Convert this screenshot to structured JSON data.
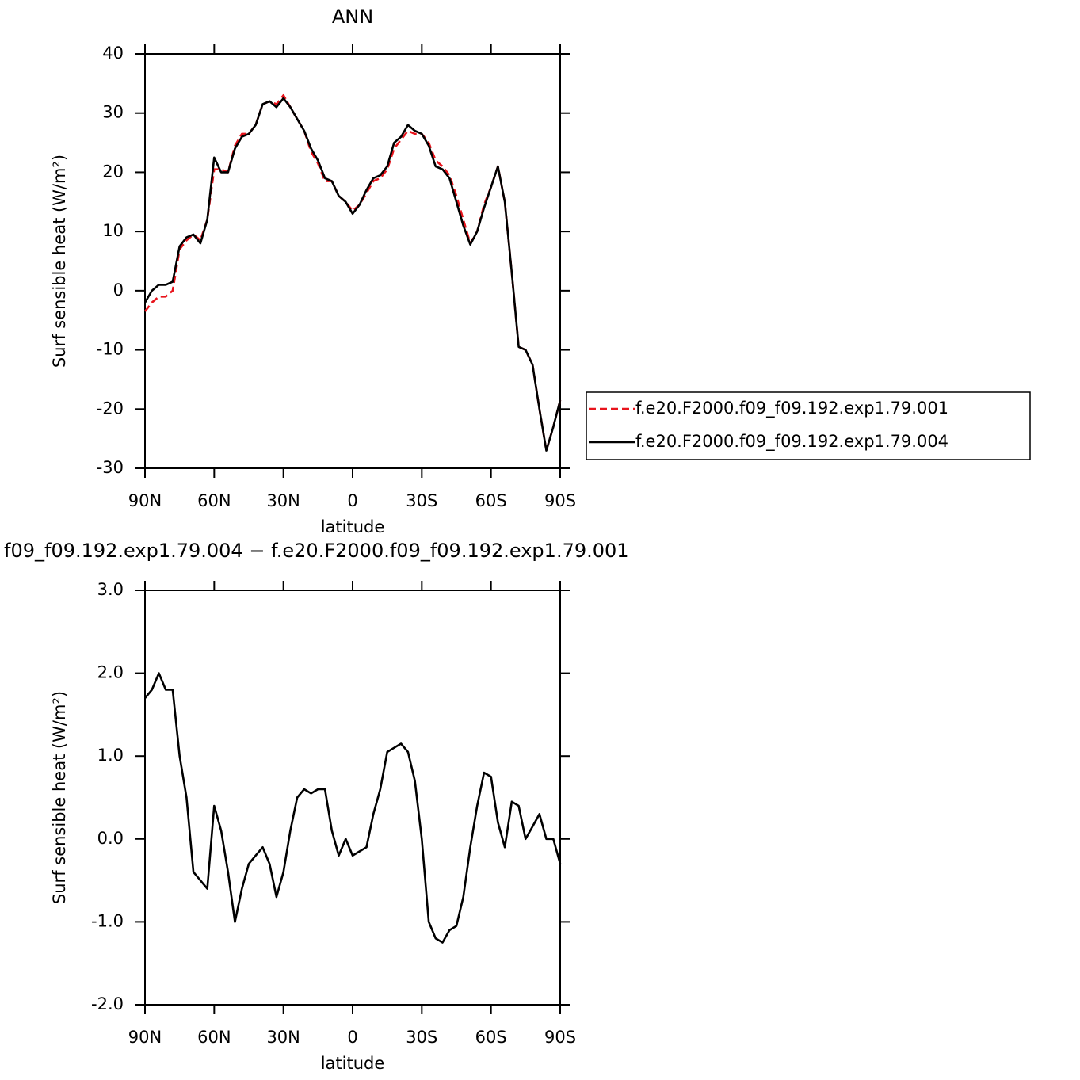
{
  "chart_data": [
    {
      "type": "line",
      "title": "ANN",
      "x_label": "latitude",
      "y_label": "Surf sensible heat (W/m²)",
      "x": [
        90,
        87,
        84,
        81,
        78,
        75,
        72,
        69,
        66,
        63,
        60,
        57,
        54,
        51,
        48,
        45,
        42,
        39,
        36,
        33,
        30,
        27,
        24,
        21,
        18,
        15,
        12,
        9,
        6,
        3,
        0,
        -3,
        -6,
        -9,
        -12,
        -15,
        -18,
        -21,
        -24,
        -27,
        -30,
        -33,
        -36,
        -39,
        -42,
        -45,
        -48,
        -51,
        -54,
        -57,
        -60,
        -63,
        -66,
        -69,
        -72,
        -75,
        -78,
        -81,
        -84,
        -87,
        -90
      ],
      "xlim": [
        90,
        -90
      ],
      "xticks": [
        {
          "value": 90,
          "label": "90N"
        },
        {
          "value": 60,
          "label": "60N"
        },
        {
          "value": 30,
          "label": "30N"
        },
        0,
        {
          "value": -30,
          "label": "30S"
        },
        {
          "value": -60,
          "label": "60S"
        },
        {
          "value": -90,
          "label": "90S"
        }
      ],
      "ylim": [
        -30,
        40
      ],
      "yticks": [
        -30,
        -20,
        -10,
        0,
        10,
        20,
        30,
        40
      ],
      "legend": "right",
      "series": [
        {
          "name": "f.e20.F2000.f09_f09.192.exp1.79.001",
          "color": "#e8141c",
          "dashed": true,
          "values": [
            -3.5,
            -2,
            -1,
            -1,
            0,
            7,
            8.5,
            9.5,
            8.5,
            12,
            20.5,
            20.5,
            20,
            24.5,
            26.5,
            26.5,
            28,
            31.5,
            32,
            31.5,
            33,
            31,
            29,
            27,
            23.5,
            21.5,
            18.5,
            18.5,
            16,
            15,
            13.5,
            14.5,
            16.5,
            18.5,
            19,
            20.5,
            24,
            25.5,
            27,
            26.5,
            26.5,
            25,
            22,
            21,
            19.5,
            16,
            12,
            8,
            10,
            14.5,
            17.5,
            21,
            15,
            3,
            -9.5,
            -10,
            -12.5,
            -20,
            -27,
            -23,
            -18.5
          ]
        },
        {
          "name": "f.e20.F2000.f09_f09.192.exp1.79.004",
          "color": "#000000",
          "dashed": false,
          "values": [
            -2,
            0,
            1,
            1,
            1.5,
            7.5,
            9,
            9.5,
            8,
            12,
            22.5,
            20,
            20,
            24,
            26,
            26.5,
            28,
            31.5,
            32,
            31,
            32.5,
            31,
            29,
            27,
            24,
            22,
            19,
            18.5,
            16,
            15,
            13,
            14.5,
            17,
            19,
            19.5,
            21,
            25,
            26,
            28,
            27,
            26.5,
            24.5,
            21,
            20.5,
            19,
            15,
            11,
            7.8,
            10,
            14,
            17.5,
            21,
            15,
            3,
            -9.5,
            -10,
            -12.5,
            -20,
            -27,
            -23,
            -18.5
          ]
        }
      ]
    },
    {
      "type": "line",
      "title": "f09_f09.192.exp1.79.004 − f.e20.F2000.f09_f09.192.exp1.79.001",
      "x_label": "latitude",
      "y_label": "Surf sensible heat (W/m²)",
      "x": [
        90,
        87,
        84,
        81,
        78,
        75,
        72,
        69,
        66,
        63,
        60,
        57,
        54,
        51,
        48,
        45,
        42,
        39,
        36,
        33,
        30,
        27,
        24,
        21,
        18,
        15,
        12,
        9,
        6,
        3,
        0,
        -3,
        -6,
        -9,
        -12,
        -15,
        -18,
        -21,
        -24,
        -27,
        -30,
        -33,
        -36,
        -39,
        -42,
        -45,
        -48,
        -51,
        -54,
        -57,
        -60,
        -63,
        -66,
        -69,
        -72,
        -75,
        -78,
        -81,
        -84,
        -87,
        -90
      ],
      "xlim": [
        90,
        -90
      ],
      "xticks": [
        {
          "value": 90,
          "label": "90N"
        },
        {
          "value": 60,
          "label": "60N"
        },
        {
          "value": 30,
          "label": "30N"
        },
        0,
        {
          "value": -30,
          "label": "30S"
        },
        {
          "value": -60,
          "label": "60S"
        },
        {
          "value": -90,
          "label": "90S"
        }
      ],
      "ylim": [
        -2,
        3
      ],
      "yticks": [
        {
          "value": -2,
          "label": "-2.0"
        },
        {
          "value": -1,
          "label": "-1.0"
        },
        {
          "value": 0,
          "label": "0.0"
        },
        {
          "value": 1,
          "label": "1.0"
        },
        {
          "value": 2,
          "label": "2.0"
        },
        {
          "value": 3,
          "label": "3.0"
        }
      ],
      "color": "#000000",
      "values": [
        1.7,
        1.8,
        2.0,
        1.8,
        1.8,
        1.0,
        0.5,
        -0.4,
        -0.5,
        -0.6,
        0.4,
        0.1,
        -0.4,
        -1.0,
        -0.6,
        -0.3,
        -0.2,
        -0.1,
        -0.3,
        -0.7,
        -0.4,
        0.1,
        0.5,
        0.6,
        0.55,
        0.6,
        0.6,
        0.1,
        -0.2,
        0.0,
        -0.2,
        -0.15,
        -0.1,
        0.3,
        0.6,
        1.05,
        1.1,
        1.15,
        1.05,
        0.7,
        0.0,
        -1.0,
        -1.2,
        -1.25,
        -1.1,
        -1.05,
        -0.7,
        -0.1,
        0.4,
        0.8,
        0.75,
        0.2,
        -0.1,
        0.45,
        0.4,
        0.0,
        0.15,
        0.3,
        0.0,
        0.0,
        -0.3
      ]
    }
  ]
}
